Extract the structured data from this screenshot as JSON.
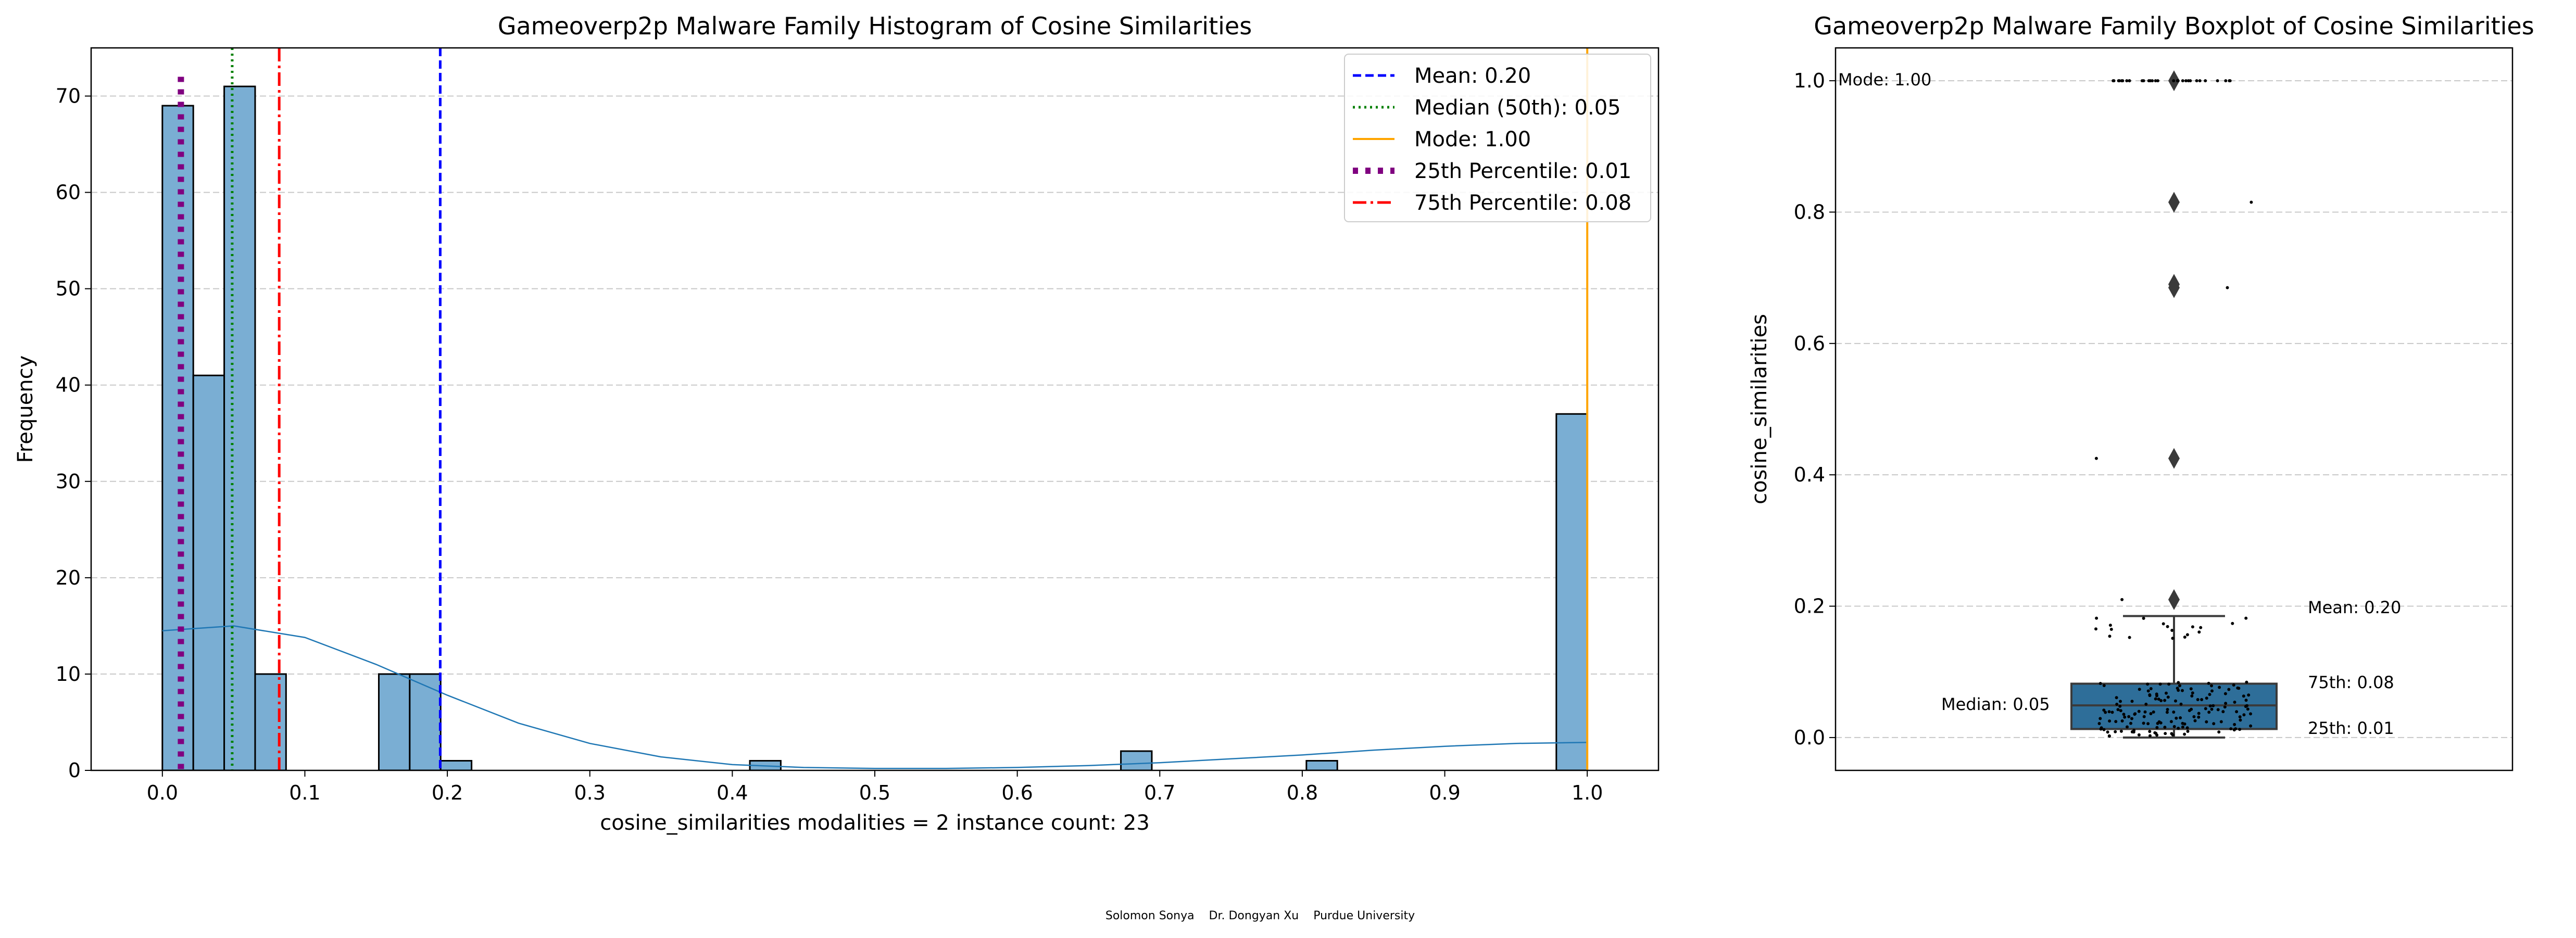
{
  "footer": "Solomon Sonya    Dr. Dongyan Xu    Purdue University",
  "chart_data": [
    {
      "type": "bar",
      "title": "Gameoverp2p Malware Family Histogram of Cosine Similarities",
      "xlabel": "cosine_similarities    modalities = 2    instance count: 23",
      "ylabel": "Frequency",
      "xlim": [
        -0.05,
        1.05
      ],
      "ylim": [
        0,
        75
      ],
      "x_ticks": [
        "0.0",
        "0.1",
        "0.2",
        "0.3",
        "0.4",
        "0.5",
        "0.6",
        "0.7",
        "0.8",
        "0.9",
        "1.0"
      ],
      "y_ticks": [
        "0",
        "10",
        "20",
        "30",
        "40",
        "50",
        "60",
        "70"
      ],
      "grid": "horizontal dashed",
      "bin_width": 0.0217,
      "bars": [
        {
          "x": 0.0,
          "value": 69
        },
        {
          "x": 0.0217,
          "value": 41
        },
        {
          "x": 0.0434,
          "value": 71
        },
        {
          "x": 0.0651,
          "value": 10
        },
        {
          "x": 0.1519,
          "value": 10
        },
        {
          "x": 0.1736,
          "value": 10
        },
        {
          "x": 0.1953,
          "value": 1
        },
        {
          "x": 0.4123,
          "value": 1
        },
        {
          "x": 0.6727,
          "value": 2
        },
        {
          "x": 0.8029,
          "value": 1
        },
        {
          "x": 0.9783,
          "value": 37
        }
      ],
      "kde": {
        "x": [
          0.0,
          0.05,
          0.1,
          0.15,
          0.2,
          0.25,
          0.3,
          0.35,
          0.4,
          0.45,
          0.5,
          0.55,
          0.6,
          0.65,
          0.7,
          0.75,
          0.8,
          0.85,
          0.9,
          0.95,
          1.0
        ],
        "y": [
          14.5,
          15.0,
          13.8,
          11.0,
          7.8,
          4.9,
          2.8,
          1.4,
          0.6,
          0.3,
          0.2,
          0.2,
          0.3,
          0.5,
          0.8,
          1.2,
          1.6,
          2.1,
          2.5,
          2.8,
          2.9
        ]
      },
      "reference_lines": [
        {
          "label": "Mean: 0.20",
          "x": 0.195,
          "color": "#0000ff",
          "style": "dashed"
        },
        {
          "label": "Median (50th): 0.05",
          "x": 0.049,
          "color": "#008000",
          "style": "dotted"
        },
        {
          "label": "Mode: 1.00",
          "x": 1.0,
          "color": "#ffa500",
          "style": "solid"
        },
        {
          "label": "25th Percentile: 0.01",
          "x": 0.013,
          "color": "#800080",
          "style": "thick-dotted"
        },
        {
          "label": "75th Percentile: 0.08",
          "x": 0.082,
          "color": "#ff0000",
          "style": "dashdot"
        }
      ],
      "legend_position": "top-right",
      "colors": {
        "bar": "#7aaed3",
        "kde": "#1f77b4"
      }
    },
    {
      "type": "box",
      "title": "Gameoverp2p Malware Family Boxplot of Cosine Similarities",
      "ylabel": "cosine_similarities",
      "ylim": [
        -0.05,
        1.05
      ],
      "y_ticks": [
        "0.0",
        "0.2",
        "0.4",
        "0.6",
        "0.8",
        "1.0"
      ],
      "grid": "horizontal dashed",
      "box": {
        "q1": 0.013,
        "median": 0.049,
        "q3": 0.082,
        "whisker_low": 0.0,
        "whisker_high": 0.185
      },
      "outliers": [
        1.0,
        0.815,
        0.69,
        0.685,
        0.425,
        0.21
      ],
      "annotations": [
        {
          "text": "Mode: 1.00",
          "color": "#000000"
        },
        {
          "text": "Mean: 0.20",
          "color": "#0000ff"
        },
        {
          "text": "75th: 0.08",
          "color": "#ff0000"
        },
        {
          "text": "Median: 0.05",
          "color": "#008000"
        },
        {
          "text": "25th: 0.01",
          "color": "#800080"
        }
      ],
      "colors": {
        "box": "#2e6e99"
      }
    }
  ]
}
